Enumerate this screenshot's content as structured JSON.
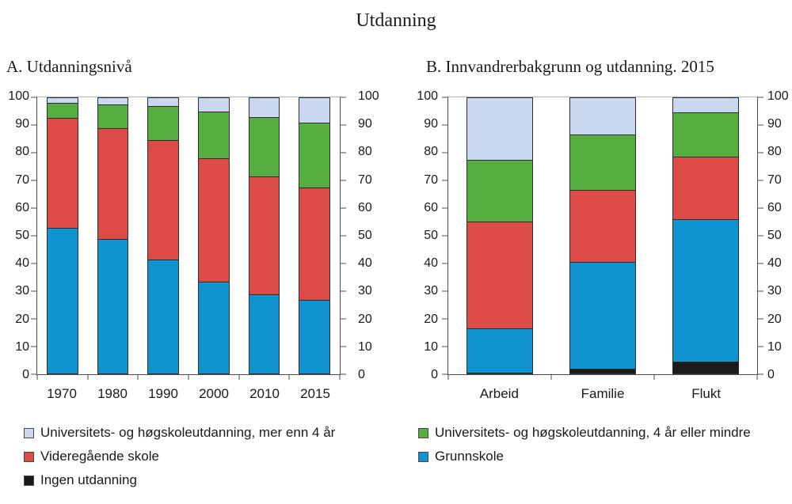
{
  "title": "Utdanning",
  "colors": {
    "blue": "#0f93d1",
    "red": "#dc4b45",
    "green": "#56ad40",
    "lavender": "#c9d8f0",
    "black": "#1a1a1a",
    "axis": "#4d4d4d"
  },
  "yticks": [
    0,
    10,
    20,
    30,
    40,
    50,
    60,
    70,
    80,
    90,
    100
  ],
  "legend": {
    "left": [
      {
        "label": "Universitets- og høgskoleutdanning, mer enn 4 år",
        "color_key": "lavender"
      },
      {
        "label": "Videregående skole",
        "color_key": "red"
      },
      {
        "label": "Ingen utdanning",
        "color_key": "black"
      }
    ],
    "right": [
      {
        "label": "Universitets- og høgskoleutdanning, 4 år eller mindre",
        "color_key": "green"
      },
      {
        "label": "Grunnskole",
        "color_key": "blue"
      }
    ]
  },
  "chart_data": [
    {
      "id": "a",
      "type": "bar",
      "stacked": true,
      "title": "A.  Utdanningsnivå",
      "categories": [
        "1970",
        "1980",
        "1990",
        "2000",
        "2010",
        "2015"
      ],
      "ylim": [
        0,
        100
      ],
      "grid": false,
      "series": [
        {
          "name": "Ingen utdanning",
          "color_key": "black",
          "values": [
            0,
            0,
            0,
            0,
            0,
            0
          ]
        },
        {
          "name": "Grunnskole",
          "color_key": "blue",
          "values": [
            53,
            49,
            41.5,
            33.5,
            29,
            27
          ]
        },
        {
          "name": "Videregående skole",
          "color_key": "red",
          "values": [
            39.5,
            40,
            43,
            44.5,
            42.5,
            40.5
          ]
        },
        {
          "name": "Universitets- og høgskoleutdanning, 4 år eller mindre",
          "color_key": "green",
          "values": [
            5.5,
            8.5,
            12.5,
            17,
            21.5,
            23.5
          ]
        },
        {
          "name": "Universitets- og høgskoleutdanning, mer enn 4 år",
          "color_key": "lavender",
          "values": [
            2,
            2.5,
            3,
            5,
            7,
            9
          ]
        }
      ]
    },
    {
      "id": "b",
      "type": "bar",
      "stacked": true,
      "title": "B.  Innvandrerbakgrunn og utdanning. 2015",
      "categories": [
        "Arbeid",
        "Familie",
        "Flukt"
      ],
      "ylim": [
        0,
        100
      ],
      "grid": false,
      "series": [
        {
          "name": "Ingen utdanning",
          "color_key": "black",
          "values": [
            0.5,
            2,
            4.5
          ]
        },
        {
          "name": "Grunnskole",
          "color_key": "blue",
          "values": [
            16,
            38.5,
            51.5
          ]
        },
        {
          "name": "Videregående skole",
          "color_key": "red",
          "values": [
            38.5,
            26,
            22.5
          ]
        },
        {
          "name": "Universitets- og høgskoleutdanning, 4 år eller mindre",
          "color_key": "green",
          "values": [
            22.5,
            20,
            16
          ]
        },
        {
          "name": "Universitets- og høgskoleutdanning, mer enn 4 år",
          "color_key": "lavender",
          "values": [
            22.5,
            13.5,
            5.5
          ]
        }
      ]
    }
  ]
}
